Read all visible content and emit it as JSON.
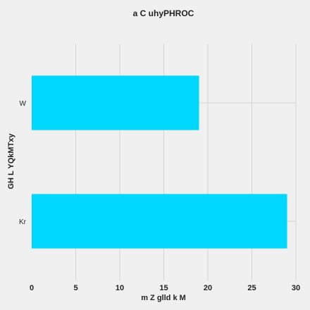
{
  "chart_data": {
    "type": "bar",
    "orientation": "horizontal",
    "title": "a C uhyPHROC",
    "xlabel": "m Z glld k M",
    "ylabel": "GH L YQkMTxy",
    "categories": [
      "W",
      "Kr"
    ],
    "series": [
      {
        "values": [
          19,
          29
        ]
      }
    ],
    "xlim": [
      0,
      30
    ],
    "xticks": [
      "0",
      "5",
      "10",
      "15",
      "20",
      "25",
      "30"
    ],
    "grid": true,
    "legend": "none",
    "colors": {
      "bar": "#00d7ff",
      "background": "#f0f0f0",
      "grid": "#d3d3d3"
    }
  }
}
